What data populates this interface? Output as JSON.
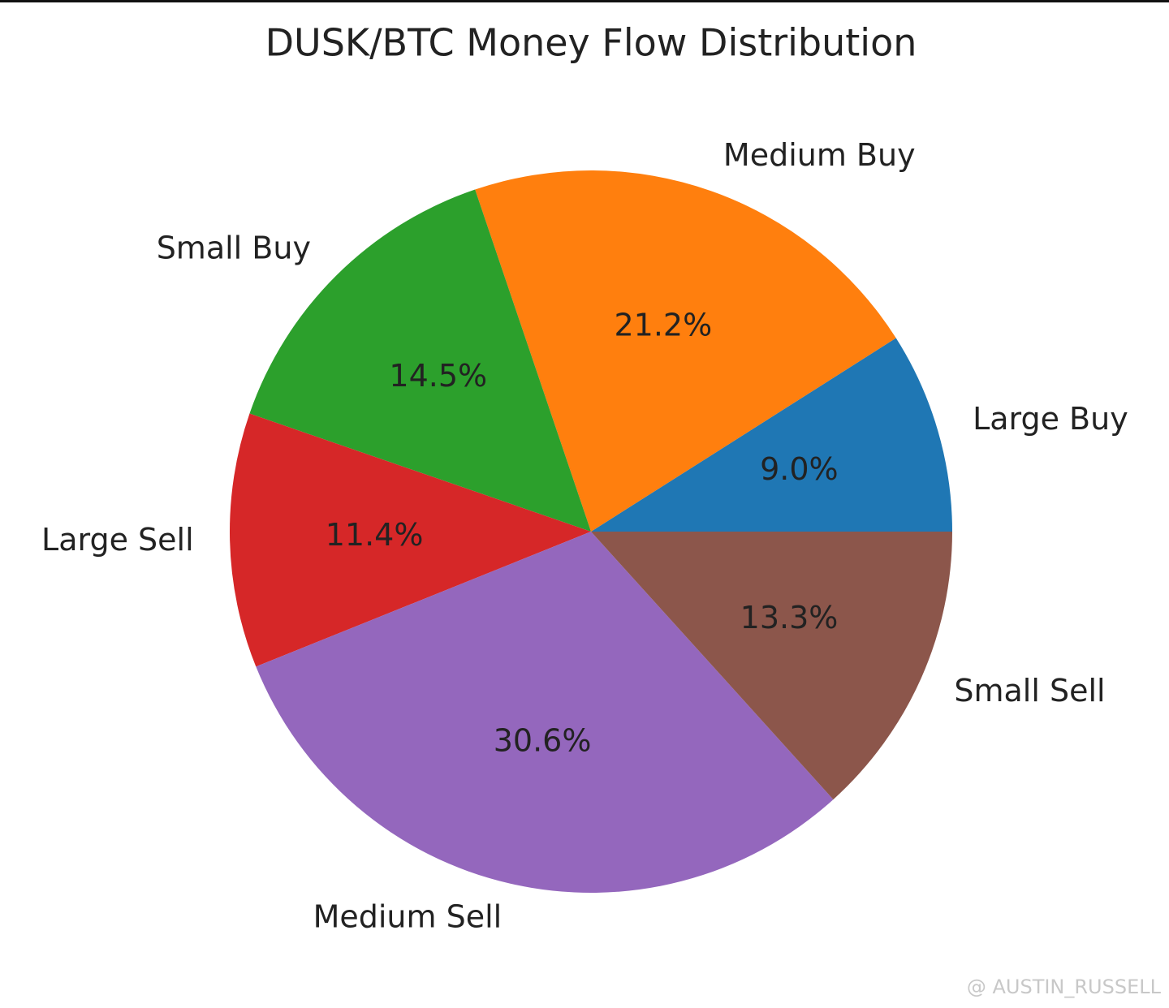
{
  "chart_data": {
    "type": "pie",
    "title": "DUSK/BTC Money Flow Distribution",
    "categories": [
      "Large Buy",
      "Medium Buy",
      "Small Buy",
      "Large Sell",
      "Medium Sell",
      "Small Sell"
    ],
    "values": [
      9.0,
      21.2,
      14.5,
      11.4,
      30.6,
      13.3
    ],
    "value_labels": [
      "9.0%",
      "21.2%",
      "14.5%",
      "11.4%",
      "30.6%",
      "13.3%"
    ],
    "colors": [
      "#1f77b4",
      "#ff7f0e",
      "#2ca02c",
      "#d62728",
      "#9467bd",
      "#8c564b"
    ],
    "watermark": "@ AUSTIN_RUSSELL"
  }
}
